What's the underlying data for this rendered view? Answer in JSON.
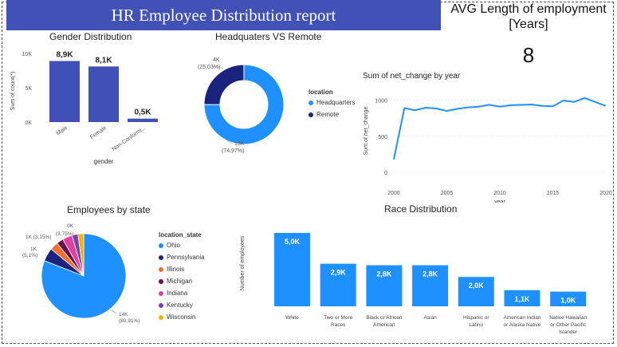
{
  "header": {
    "title": "HR Employee Distribution report",
    "kpi_title": "AVG Length of employment [Years]",
    "kpi_value": "8"
  },
  "colors": {
    "banner": "#4151b5",
    "bar_gender": "#3f51b5",
    "bar_race": "#1e90ff",
    "line": "#1e90ff",
    "headquarters": "#1e90ff",
    "remote": "#1a237e"
  },
  "chart_data": [
    {
      "type": "bar",
      "title": "Gender Distribution",
      "xlabel": "gender",
      "ylabel": "Sum of count(*)",
      "categories": [
        "Male",
        "Female",
        "Non-Conformi..."
      ],
      "values": [
        8900,
        8100,
        500
      ],
      "data_labels": [
        "8,9K",
        "8,1K",
        "0,5K"
      ],
      "yticks": [
        0,
        5000,
        10000
      ],
      "ytick_labels": [
        "0K",
        "5K",
        "10K"
      ],
      "ylim": [
        0,
        10000
      ]
    },
    {
      "type": "pie",
      "title": "Headquaters VS Remote",
      "legend_title": "location",
      "categories": [
        "Headquarters",
        "Remote"
      ],
      "values": [
        74.97,
        25.03
      ],
      "data_labels": [
        [
          "13K",
          "(74,97%)"
        ],
        [
          "4K",
          "(25,03%)"
        ]
      ]
    },
    {
      "type": "line",
      "title": "Sum of net_change by year",
      "xlabel": "year",
      "ylabel": "Sum of net_change",
      "x": [
        2000,
        2001,
        2002,
        2003,
        2004,
        2005,
        2006,
        2007,
        2008,
        2009,
        2010,
        2011,
        2012,
        2013,
        2014,
        2015,
        2016,
        2017,
        2018,
        2019,
        2020
      ],
      "values": [
        180,
        890,
        860,
        895,
        885,
        850,
        880,
        900,
        910,
        935,
        910,
        930,
        935,
        940,
        920,
        915,
        995,
        975,
        1030,
        975,
        920
      ],
      "xticks": [
        2000,
        2005,
        2010,
        2015,
        2020
      ],
      "yticks": [
        0,
        500,
        1000
      ],
      "xlim": [
        2000,
        2020
      ],
      "ylim": [
        0,
        1150
      ]
    },
    {
      "type": "pie",
      "title": "Employees by state",
      "legend_title": "location_state",
      "categories": [
        "Ohio",
        "Pennsylvania",
        "Illinois",
        "Michigan",
        "Indiana",
        "Kentucky",
        "Wisconsin"
      ],
      "values": [
        80.91,
        5.1,
        3.15,
        2.6,
        3.75,
        2.3,
        2.19
      ],
      "colors": [
        "#1e90ff",
        "#1a237e",
        "#f07030",
        "#6a1050",
        "#e040a0",
        "#7048b0",
        "#f0b400"
      ],
      "data_labels": [
        [
          "14K",
          "(80,91%)"
        ],
        [
          "1K",
          "(5,1%)"
        ],
        [
          "1K (3,15%)"
        ],
        [
          "(3,75%)"
        ],
        [
          "0K"
        ]
      ]
    },
    {
      "type": "bar",
      "title": "Race Distribution",
      "ylabel": "Number of employees",
      "categories": [
        [
          "White"
        ],
        [
          "Two or More",
          "Races"
        ],
        [
          "Black or African",
          "American"
        ],
        [
          "Asian"
        ],
        [
          "Hispanic or",
          "Latino"
        ],
        [
          "American Indian",
          "or Alaska Native"
        ],
        [
          "Native Hawaiian",
          "or Other Pacific",
          "Islander"
        ]
      ],
      "values": [
        5000,
        2900,
        2800,
        2800,
        2000,
        1100,
        1000
      ],
      "data_labels": [
        "5,0K",
        "2,9K",
        "2,8K",
        "2,8K",
        "2,0K",
        "1,1K",
        "1,0K"
      ]
    }
  ]
}
